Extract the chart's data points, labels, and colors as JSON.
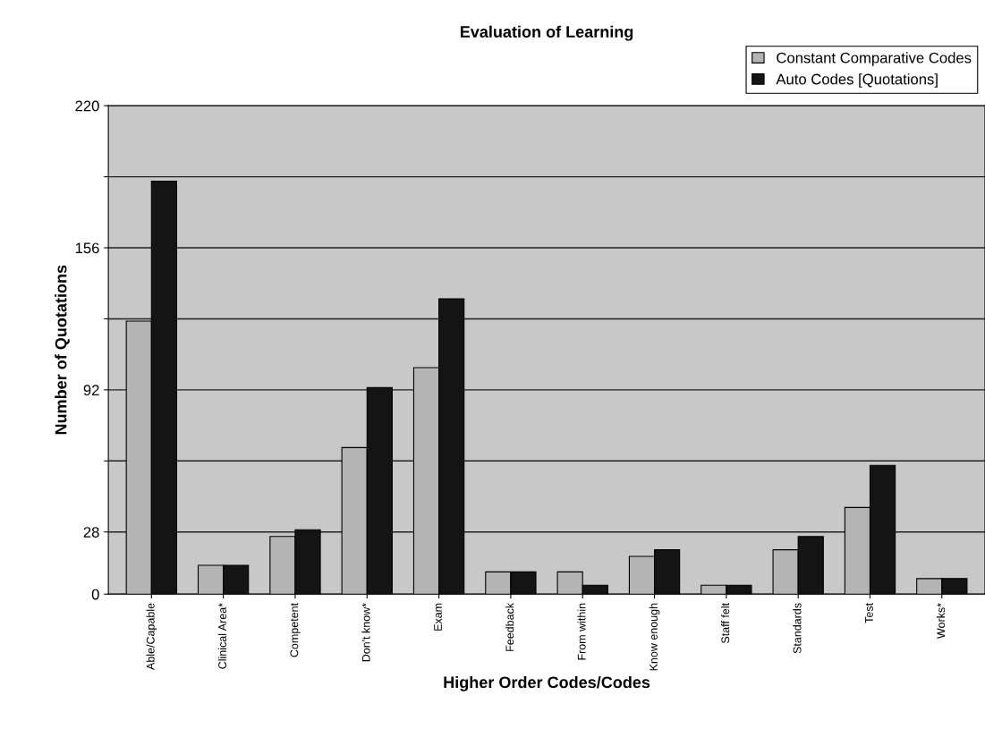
{
  "chart_data": {
    "type": "bar",
    "title": "Evaluation of Learning",
    "xlabel": "Higher Order Codes/Codes",
    "ylabel": "Number of Quotations",
    "categories": [
      "Able/Capable",
      "Clinical Area*",
      "Competent",
      "Don't know*",
      "Exam",
      "Feedback",
      "From within",
      "Know enough",
      "Staff felt",
      "Standards",
      "Test",
      "Works*"
    ],
    "series": [
      {
        "name": "Constant Comparative Codes",
        "color": "#b4b4b4",
        "values": [
          123,
          13,
          26,
          66,
          102,
          10,
          10,
          17,
          4,
          20,
          39,
          7
        ]
      },
      {
        "name": "Auto Codes [Quotations]",
        "color": "#141414",
        "values": [
          186,
          13,
          29,
          93,
          133,
          10,
          4,
          20,
          4,
          26,
          58,
          7
        ]
      }
    ],
    "ylim": [
      0,
      220
    ],
    "yticks": [
      0,
      28,
      {
        "value": 60,
        "label": null
      },
      92,
      {
        "value": 124,
        "label": null
      },
      156,
      {
        "value": 188,
        "label": null
      },
      220
    ],
    "grid": "y",
    "legend": "top right"
  }
}
